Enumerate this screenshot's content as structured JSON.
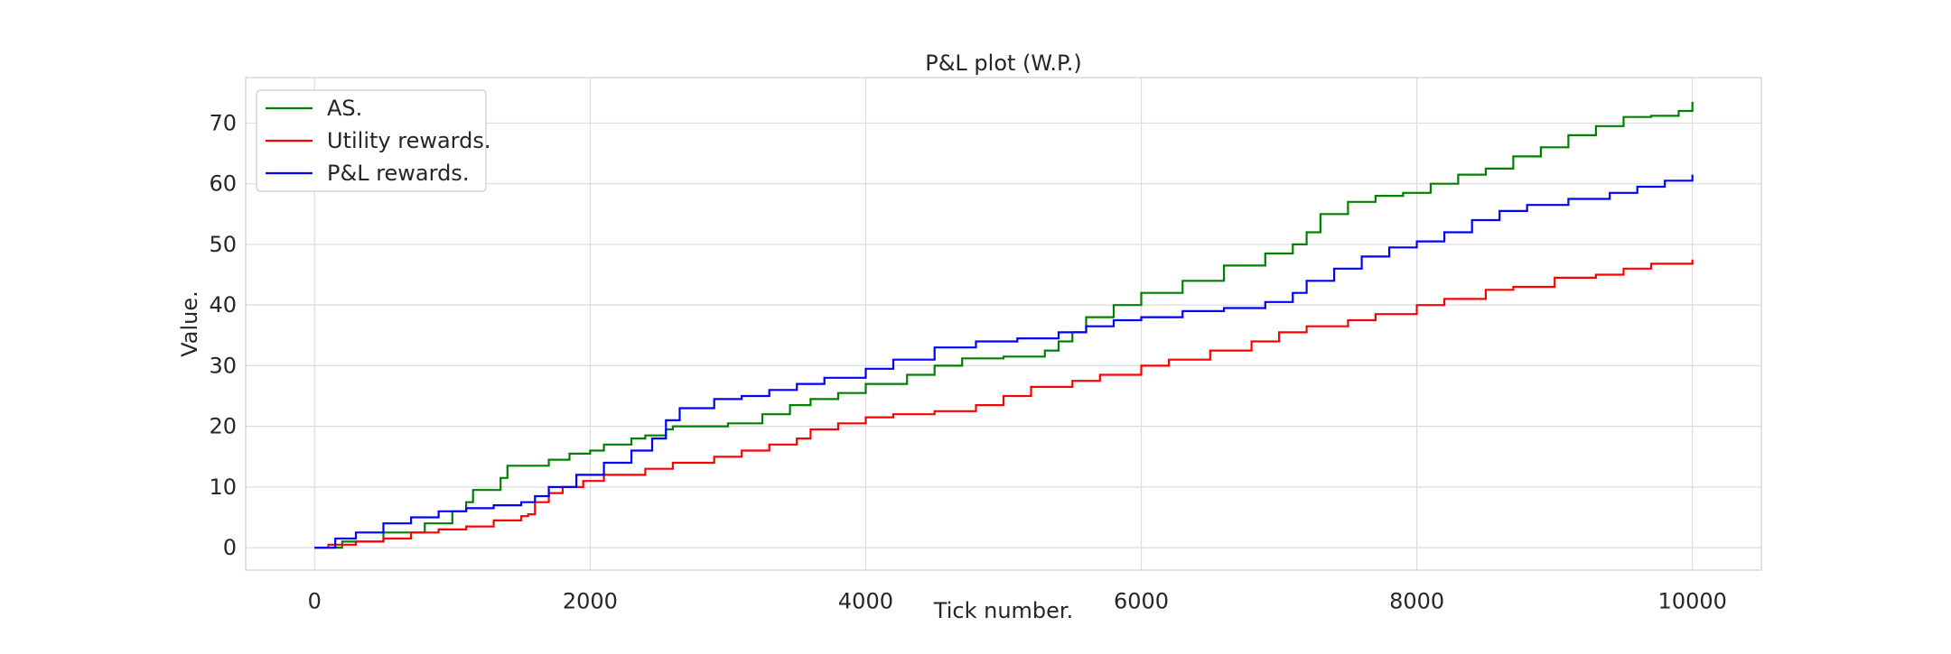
{
  "chart_data": {
    "type": "line",
    "title": "P&L plot (W.P.)",
    "xlabel": "Tick number.",
    "ylabel": "Value.",
    "xlim": [
      -500,
      10500
    ],
    "ylim": [
      -3.7,
      77.5
    ],
    "xticks": [
      0,
      2000,
      4000,
      6000,
      8000,
      10000
    ],
    "xtick_labels": [
      "0",
      "2000",
      "4000",
      "6000",
      "8000",
      "10000"
    ],
    "yticks": [
      0,
      10,
      20,
      30,
      40,
      50,
      60,
      70
    ],
    "ytick_labels": [
      "0",
      "10",
      "20",
      "30",
      "40",
      "50",
      "60",
      "70"
    ],
    "grid": true,
    "legend": "top-left",
    "series": [
      {
        "name": "AS.",
        "color": "#008000",
        "x": [
          0,
          200,
          500,
          800,
          1000,
          1100,
          1150,
          1350,
          1400,
          1700,
          1850,
          2000,
          2100,
          2300,
          2400,
          2550,
          2600,
          3000,
          3250,
          3450,
          3600,
          3800,
          4000,
          4300,
          4500,
          4700,
          5000,
          5300,
          5400,
          5500,
          5600,
          5800,
          6000,
          6300,
          6600,
          6900,
          7100,
          7200,
          7300,
          7500,
          7700,
          7900,
          8100,
          8300,
          8500,
          8700,
          8900,
          9100,
          9300,
          9500,
          9700,
          9900,
          10000
        ],
        "values": [
          0,
          1,
          2.5,
          4,
          6,
          7.5,
          9.5,
          11.5,
          13.5,
          14.5,
          15.5,
          16,
          17,
          18,
          18.5,
          19.5,
          20,
          20.5,
          22,
          23.5,
          24.5,
          25.5,
          27,
          28.5,
          30,
          31.2,
          31.5,
          32.5,
          34,
          35.5,
          38,
          40,
          42,
          44,
          46.5,
          48.5,
          50,
          52,
          55,
          57,
          58,
          58.5,
          60,
          61.5,
          62.5,
          64.5,
          66,
          68,
          69.5,
          71,
          71.2,
          72,
          73.5
        ]
      },
      {
        "name": "Utility rewards.",
        "color": "#ff0000",
        "x": [
          0,
          100,
          300,
          500,
          700,
          900,
          1100,
          1300,
          1500,
          1550,
          1600,
          1700,
          1800,
          1950,
          2100,
          2400,
          2600,
          2900,
          3100,
          3300,
          3500,
          3600,
          3800,
          4000,
          4200,
          4500,
          4800,
          5000,
          5200,
          5500,
          5700,
          6000,
          6200,
          6500,
          6800,
          7000,
          7200,
          7500,
          7700,
          8000,
          8200,
          8500,
          8700,
          9000,
          9300,
          9500,
          9700,
          10000
        ],
        "values": [
          0,
          0.5,
          1,
          1.5,
          2.5,
          3,
          3.5,
          4.5,
          5.2,
          5.5,
          7.5,
          9,
          10,
          11,
          12,
          13,
          14,
          15,
          16,
          17,
          18,
          19.5,
          20.5,
          21.5,
          22,
          22.5,
          23.5,
          25,
          26.5,
          27.5,
          28.5,
          30,
          31,
          32.5,
          34,
          35.5,
          36.5,
          37.5,
          38.5,
          40,
          41,
          42.5,
          43,
          44.5,
          45,
          46,
          46.8,
          47.5
        ]
      },
      {
        "name": "P&L rewards.",
        "color": "#0000ff",
        "x": [
          0,
          150,
          300,
          500,
          700,
          900,
          1100,
          1300,
          1500,
          1600,
          1700,
          1900,
          2100,
          2300,
          2450,
          2550,
          2650,
          2900,
          3100,
          3300,
          3500,
          3700,
          4000,
          4200,
          4500,
          4800,
          5100,
          5400,
          5600,
          5800,
          6000,
          6300,
          6600,
          6900,
          7100,
          7200,
          7400,
          7600,
          7800,
          8000,
          8200,
          8400,
          8600,
          8800,
          9100,
          9400,
          9600,
          9800,
          10000
        ],
        "values": [
          0,
          1.5,
          2.5,
          4,
          5,
          6,
          6.5,
          7,
          7.5,
          8.5,
          10,
          12,
          14,
          16,
          18,
          21,
          23,
          24.5,
          25,
          26,
          27,
          28,
          29.5,
          31,
          33,
          34,
          34.5,
          35.5,
          36.5,
          37.5,
          38,
          39,
          39.5,
          40.5,
          42,
          44,
          46,
          48,
          49.5,
          50.5,
          52,
          54,
          55.5,
          56.5,
          57.5,
          58.5,
          59.5,
          60.5,
          61.5
        ]
      }
    ]
  }
}
